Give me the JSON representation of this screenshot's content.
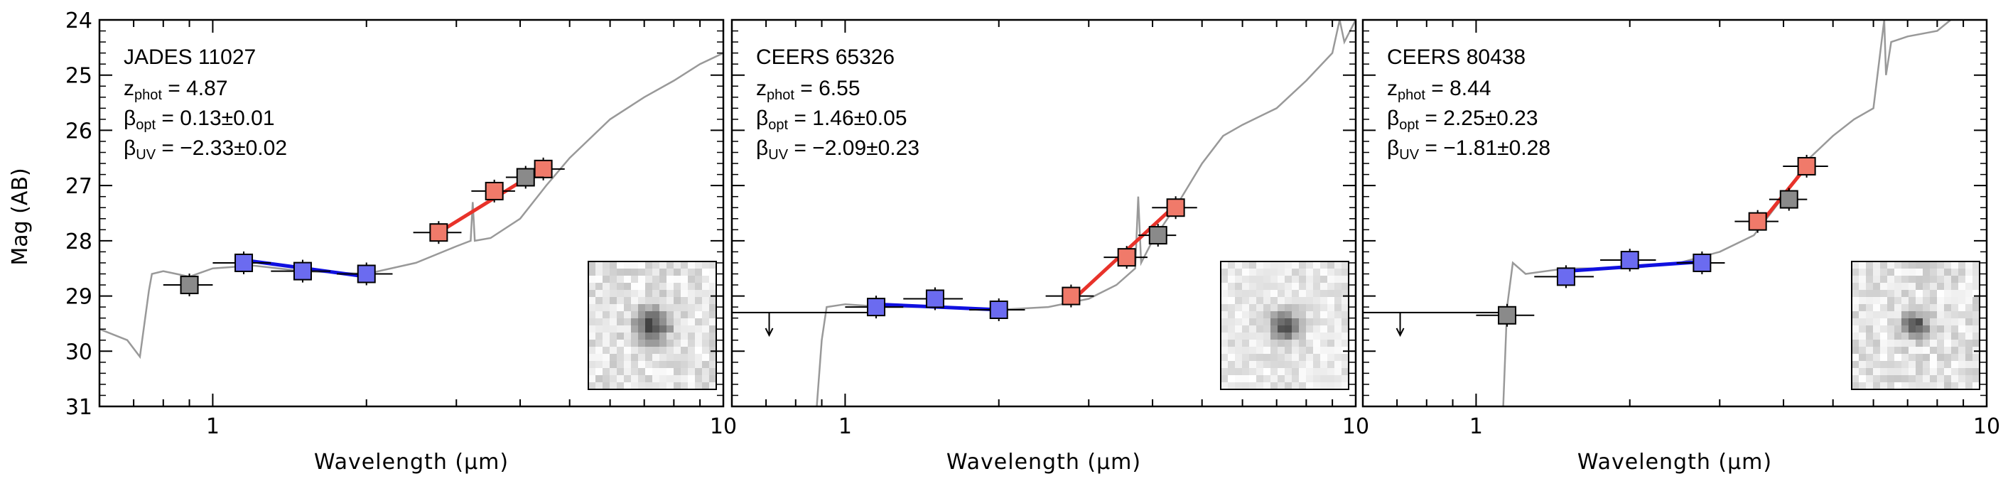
{
  "figure": {
    "ylabel": "Mag (AB)",
    "xlabel": "Wavelength (μm)",
    "y_ticks": [
      "24",
      "25",
      "26",
      "27",
      "28",
      "29",
      "30",
      "31"
    ],
    "x_ticks": [
      "1",
      "10"
    ]
  },
  "chart_data": [
    {
      "type": "scatter",
      "name": "JADES 11027",
      "z_phot": "4.87",
      "beta_opt": "0.13±0.01",
      "beta_uv": "−2.33±0.02",
      "xlabel": "Wavelength (μm)",
      "ylabel": "Mag (AB)",
      "xscale": "log",
      "xlim": [
        0.6,
        10
      ],
      "ylim": [
        31,
        24
      ],
      "colors": {
        "uv": "#6b6bf0",
        "opt": "#f07a6a",
        "other": "#8a8a8a",
        "uv_line": "#1010e0",
        "opt_line": "#e8322a",
        "template": "#999999"
      },
      "series": [
        {
          "name": "uv",
          "x": [
            1.15,
            1.5,
            2.0
          ],
          "y": [
            28.4,
            28.55,
            28.6
          ],
          "xerr": [
            0.15,
            0.2,
            0.25
          ]
        },
        {
          "name": "opt",
          "x": [
            2.77,
            3.56,
            4.44
          ],
          "y": [
            27.85,
            27.1,
            26.7
          ],
          "xerr": [
            0.3,
            0.35,
            0.45
          ]
        },
        {
          "name": "other",
          "x": [
            0.9,
            4.1
          ],
          "y": [
            28.8,
            26.85
          ],
          "xerr": [
            0.1,
            0.35
          ]
        }
      ],
      "fit_uv": {
        "x": [
          1.15,
          2.0
        ],
        "y": [
          28.35,
          28.65
        ]
      },
      "fit_opt": {
        "x": [
          2.77,
          4.44
        ],
        "y": [
          27.85,
          26.68
        ]
      },
      "upper_limits": [],
      "template": {
        "x": [
          0.6,
          0.68,
          0.72,
          0.75,
          0.76,
          0.8,
          0.9,
          1.0,
          1.2,
          1.5,
          2.0,
          2.5,
          3.0,
          3.2,
          3.23,
          3.26,
          3.5,
          4.0,
          4.5,
          5.0,
          6.0,
          7.0,
          8.0,
          9.0,
          10.0
        ],
        "y": [
          29.6,
          29.8,
          30.1,
          28.9,
          28.6,
          28.55,
          28.65,
          28.5,
          28.45,
          28.55,
          28.6,
          28.4,
          28.1,
          28.0,
          27.3,
          28.0,
          27.95,
          27.6,
          27.0,
          26.5,
          25.8,
          25.4,
          25.1,
          24.8,
          24.6
        ]
      },
      "inset": {
        "blob_radius": 0.09,
        "noise": 0.3
      }
    },
    {
      "type": "scatter",
      "name": "CEERS 65326",
      "z_phot": "6.55",
      "beta_opt": "1.46±0.05",
      "beta_uv": "−2.09±0.23",
      "xlabel": "Wavelength (μm)",
      "ylabel": "Mag (AB)",
      "xscale": "log",
      "xlim": [
        0.6,
        10
      ],
      "ylim": [
        31,
        24
      ],
      "colors": {
        "uv": "#6b6bf0",
        "opt": "#f07a6a",
        "other": "#8a8a8a",
        "uv_line": "#1010e0",
        "opt_line": "#e8322a",
        "template": "#999999"
      },
      "series": [
        {
          "name": "uv",
          "x": [
            1.15,
            1.5,
            2.0
          ],
          "y": [
            29.2,
            29.05,
            29.25
          ],
          "xerr": [
            0.15,
            0.2,
            0.25
          ]
        },
        {
          "name": "opt",
          "x": [
            2.77,
            3.56,
            4.44
          ],
          "y": [
            29.0,
            28.3,
            27.4
          ],
          "xerr": [
            0.3,
            0.35,
            0.45
          ]
        },
        {
          "name": "other",
          "x": [
            4.1
          ],
          "y": [
            27.9
          ],
          "xerr": [
            0.35
          ]
        }
      ],
      "fit_uv": {
        "x": [
          1.15,
          2.0
        ],
        "y": [
          29.15,
          29.25
        ]
      },
      "fit_opt": {
        "x": [
          2.77,
          4.44
        ],
        "y": [
          29.1,
          27.35
        ]
      },
      "upper_limits": [
        {
          "x": 0.71,
          "y": 29.3,
          "xerr": 0.1
        }
      ],
      "template": {
        "x": [
          0.88,
          0.9,
          0.92,
          1.0,
          1.2,
          1.5,
          2.0,
          2.5,
          3.0,
          3.4,
          3.7,
          3.75,
          3.8,
          4.0,
          4.5,
          5.0,
          5.5,
          6.0,
          7.0,
          8.0,
          9.0,
          9.3,
          9.5,
          10.0
        ],
        "y": [
          31.0,
          29.8,
          29.2,
          29.15,
          29.2,
          29.2,
          29.25,
          29.2,
          29.05,
          28.8,
          28.5,
          27.2,
          28.4,
          28.0,
          27.3,
          26.6,
          26.1,
          25.9,
          25.6,
          25.1,
          24.6,
          24.0,
          24.4,
          24.0
        ]
      },
      "inset": {
        "blob_radius": 0.08,
        "noise": 0.25
      }
    },
    {
      "type": "scatter",
      "name": "CEERS 80438",
      "z_phot": "8.44",
      "beta_opt": "2.25±0.23",
      "beta_uv": "−1.81±0.28",
      "xlabel": "Wavelength (μm)",
      "ylabel": "Mag (AB)",
      "xscale": "log",
      "xlim": [
        0.6,
        10
      ],
      "ylim": [
        31,
        24
      ],
      "colors": {
        "uv": "#6b6bf0",
        "opt": "#f07a6a",
        "other": "#8a8a8a",
        "uv_line": "#1010e0",
        "opt_line": "#e8322a",
        "template": "#999999"
      },
      "series": [
        {
          "name": "uv",
          "x": [
            1.5,
            2.0,
            2.77
          ],
          "y": [
            28.65,
            28.35,
            28.4
          ],
          "xerr": [
            0.2,
            0.25,
            0.3
          ]
        },
        {
          "name": "opt",
          "x": [
            3.56,
            4.44
          ],
          "y": [
            27.65,
            26.65
          ],
          "xerr": [
            0.35,
            0.45
          ]
        },
        {
          "name": "other",
          "x": [
            1.15,
            4.1
          ],
          "y": [
            29.35,
            27.25
          ],
          "xerr": [
            0.15,
            0.35
          ]
        }
      ],
      "fit_uv": {
        "x": [
          1.5,
          2.77
        ],
        "y": [
          28.55,
          28.38
        ]
      },
      "fit_opt": {
        "x": [
          3.56,
          4.44
        ],
        "y": [
          27.75,
          26.65
        ]
      },
      "upper_limits": [
        {
          "x": 0.71,
          "y": 29.3,
          "xerr": 0.1
        }
      ],
      "template": {
        "x": [
          1.13,
          1.15,
          1.18,
          1.25,
          1.5,
          2.0,
          2.5,
          3.0,
          3.5,
          4.0,
          4.5,
          5.0,
          5.5,
          6.0,
          6.3,
          6.35,
          6.5,
          7.0,
          8.0,
          8.5,
          9.0
        ],
        "y": [
          31.0,
          29.2,
          28.4,
          28.6,
          28.5,
          28.5,
          28.4,
          28.2,
          27.9,
          27.2,
          26.5,
          26.1,
          25.8,
          25.6,
          24.0,
          25.0,
          24.4,
          24.3,
          24.2,
          24.0,
          23.8
        ]
      },
      "inset": {
        "blob_radius": 0.07,
        "noise": 0.3
      }
    }
  ]
}
